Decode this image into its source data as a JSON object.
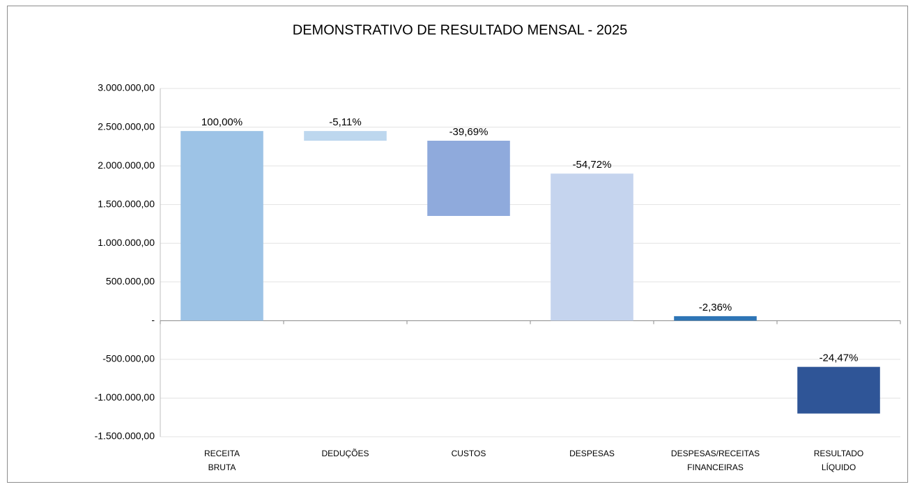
{
  "chart_data": {
    "type": "floating-bar",
    "title": "DEMONSTRATIVO DE RESULTADO MENSAL - 2025",
    "categories": [
      [
        "RECEITA",
        "BRUTA"
      ],
      [
        "DEDUÇÕES"
      ],
      [
        "CUSTOS"
      ],
      [
        "DESPESAS"
      ],
      [
        "DESPESAS/RECEITAS",
        "FINANCEIRAS"
      ],
      [
        "RESULTADO",
        "LÍQUIDO"
      ]
    ],
    "bar_bottom": [
      0,
      2325000,
      1353000,
      0,
      0,
      -1200000
    ],
    "bar_top": [
      2450000,
      2450000,
      2325000,
      1900000,
      58000,
      -597000
    ],
    "percentages": [
      100,
      -5.11,
      -39.69,
      -54.72,
      -2.36,
      -24.47
    ],
    "value_labels": [
      "100,00%",
      "-5,11%",
      "-39,69%",
      "-54,72%",
      "-2,36%",
      "-24,47%"
    ],
    "colors": [
      "#9dc3e6",
      "#bdd7ee",
      "#8faadc",
      "#c5d4ee",
      "#2e75b6",
      "#2f5597"
    ],
    "ylim": [
      -1500000,
      3000000
    ],
    "yticks": [
      {
        "value": -1500000,
        "label": "-1.500.000,00"
      },
      {
        "value": -1000000,
        "label": "-1.000.000,00"
      },
      {
        "value": -500000,
        "label": "-500.000,00"
      },
      {
        "value": 0,
        "label": "-"
      },
      {
        "value": 500000,
        "label": "500.000,00"
      },
      {
        "value": 1000000,
        "label": "1.000.000,00"
      },
      {
        "value": 1500000,
        "label": "1.500.000,00"
      },
      {
        "value": 2000000,
        "label": "2.000.000,00"
      },
      {
        "value": 2500000,
        "label": "2.500.000,00"
      },
      {
        "value": 3000000,
        "label": "3.000.000,00"
      }
    ],
    "grid": true
  }
}
